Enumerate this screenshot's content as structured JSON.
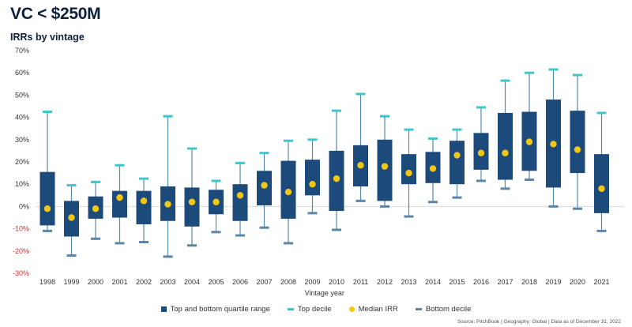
{
  "header": {
    "title": "VC < $250M",
    "subtitle": "IRRs by vintage",
    "source": "Source: PitchBook | Geography: Global | Data as of December 31, 2022"
  },
  "legend": {
    "quartile": "Top and bottom quartile range",
    "top_decile": "Top decile",
    "median": "Median IRR",
    "bottom_decile": "Bottom decile"
  },
  "colors": {
    "box": "#1c4a7a",
    "top_decile": "#3ec6cc",
    "median": "#f2c615",
    "bottom_decile": "#5a86a8",
    "whisker": "#5a86a8",
    "negative_tick": "#d0312d"
  },
  "chart_data": {
    "type": "box",
    "title": "IRRs by vintage",
    "xlabel": "Vintage year",
    "ylabel": "",
    "ylim": [
      -30,
      70
    ],
    "yticks": [
      70,
      60,
      50,
      40,
      30,
      20,
      10,
      0,
      -10,
      -20,
      -30
    ],
    "ytick_labels": [
      "70%",
      "60%",
      "50%",
      "40%",
      "30%",
      "20%",
      "10%",
      "0%",
      "-10%",
      "-20%",
      "-30%"
    ],
    "categories": [
      "1998",
      "1999",
      "2000",
      "2001",
      "2002",
      "2003",
      "2004",
      "2005",
      "2006",
      "2007",
      "2008",
      "2009",
      "2010",
      "2011",
      "2012",
      "2013",
      "2014",
      "2015",
      "2016",
      "2017",
      "2018",
      "2019",
      "2020",
      "2021"
    ],
    "top_decile": [
      42.5,
      9.5,
      11,
      18.5,
      12.5,
      40.5,
      26,
      11.5,
      19.5,
      24,
      29.5,
      30,
      43,
      50.5,
      40.5,
      34.5,
      30.5,
      34.5,
      44.5,
      56.5,
      60,
      61.5,
      59,
      42
    ],
    "top_quartile": [
      15.5,
      2.5,
      4.5,
      7,
      7,
      9,
      8.5,
      7.5,
      10,
      16,
      20.5,
      21,
      25,
      27.5,
      30,
      23.5,
      24.5,
      29.5,
      33,
      42,
      42.5,
      48,
      43,
      23.5
    ],
    "median": [
      -1,
      -5,
      -1,
      4,
      2.5,
      1,
      2,
      2,
      5,
      9.5,
      6.5,
      10,
      12.5,
      18.5,
      18,
      15,
      17,
      23,
      24,
      24,
      29,
      28,
      25.5,
      8
    ],
    "bottom_quartile": [
      -8.5,
      -13.5,
      -5.5,
      -5,
      -8,
      -6.5,
      -9,
      -3.5,
      -6.5,
      0.5,
      -5.5,
      5,
      -2,
      9,
      2.5,
      10,
      10.5,
      10,
      16.5,
      12,
      16,
      8.5,
      15,
      -3
    ],
    "bottom_decile": [
      -11,
      -22,
      -14.5,
      -16.5,
      -16,
      -22.5,
      -17.5,
      -11.5,
      -13,
      -9.5,
      -16.5,
      -3,
      -10.5,
      2.5,
      0,
      -4.5,
      2,
      4,
      11.5,
      8,
      12,
      0,
      -1,
      -11
    ],
    "series": [
      {
        "name": "Top and bottom quartile range"
      },
      {
        "name": "Top decile"
      },
      {
        "name": "Median IRR"
      },
      {
        "name": "Bottom decile"
      }
    ],
    "legend_position": "bottom-center",
    "grid": false
  }
}
